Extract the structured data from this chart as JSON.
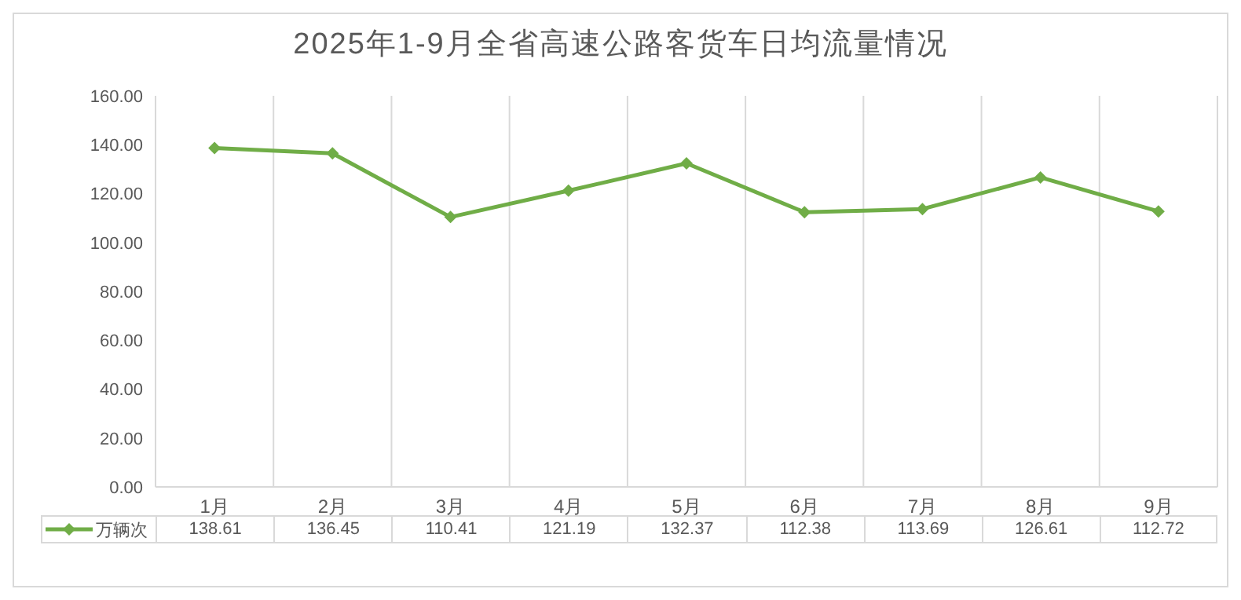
{
  "chart_data": {
    "type": "line",
    "title": "2025年1-9月全省高速公路客货车日均流量情况",
    "categories": [
      "1月",
      "2月",
      "3月",
      "4月",
      "5月",
      "6月",
      "7月",
      "8月",
      "9月"
    ],
    "series": [
      {
        "name": "万辆次",
        "color": "#70ad47",
        "values": [
          138.61,
          136.45,
          110.41,
          121.19,
          132.37,
          112.38,
          113.69,
          126.61,
          112.72
        ]
      }
    ],
    "ylim": [
      0,
      160
    ],
    "yticks": [
      {
        "value": 0,
        "label": "0.00"
      },
      {
        "value": 20,
        "label": "20.00"
      },
      {
        "value": 40,
        "label": "40.00"
      },
      {
        "value": 60,
        "label": "60.00"
      },
      {
        "value": 80,
        "label": "80.00"
      },
      {
        "value": 100,
        "label": "100.00"
      },
      {
        "value": 120,
        "label": "120.00"
      },
      {
        "value": 140,
        "label": "140.00"
      },
      {
        "value": 160,
        "label": "160.00"
      }
    ],
    "grid": "x",
    "legend": "bottom",
    "marker": "diamond",
    "data_labels": true
  }
}
